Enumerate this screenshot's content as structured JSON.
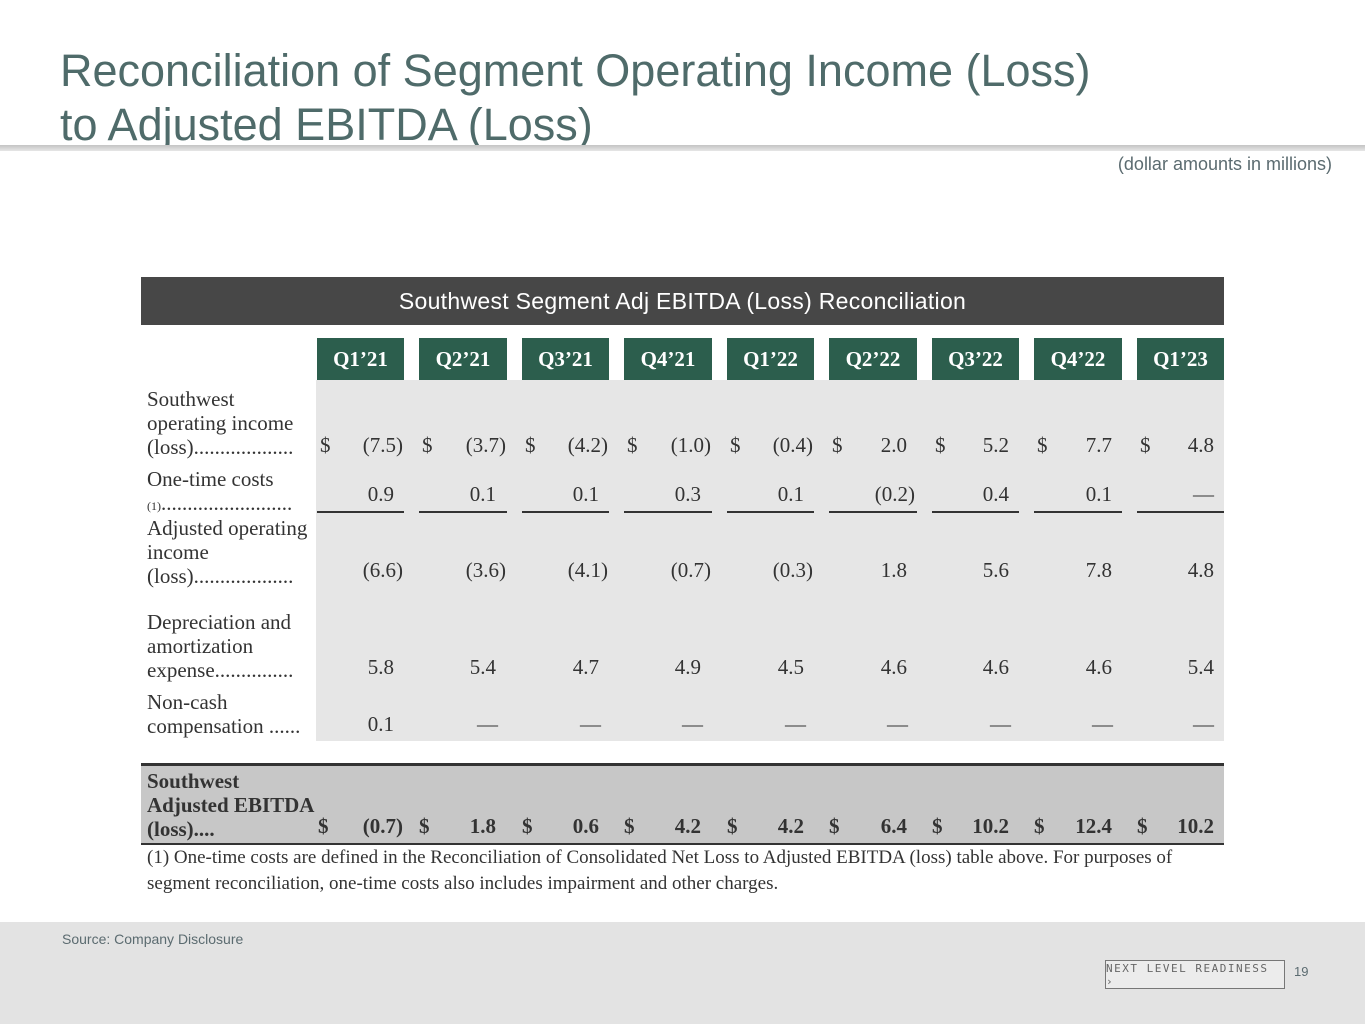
{
  "slide": {
    "title_line1": "Reconciliation of Segment Operating Income (Loss)",
    "title_line2": "to Adjusted EBITDA (Loss)",
    "units_note": "(dollar amounts in millions)",
    "page_number": "19"
  },
  "table": {
    "banner": "Southwest Segment Adj EBITDA (Loss) Reconciliation",
    "columns": [
      "Q1’21",
      "Q2’21",
      "Q3’21",
      "Q4’21",
      "Q1’22",
      "Q2’22",
      "Q3’22",
      "Q4’22",
      "Q1’23"
    ],
    "currency_symbol": "$",
    "rows": [
      {
        "label": "Southwest operating income (loss)...................",
        "values": [
          "(7.5)",
          "(3.7)",
          "(4.2)",
          "(1.0)",
          "(0.4)",
          "2.0",
          "5.2",
          "7.7",
          "4.8"
        ]
      },
      {
        "label": "One-time costs",
        "footnote_ref": "(1)",
        "label_tail": ".........................",
        "values": [
          "0.9",
          "0.1",
          "0.1",
          "0.3",
          "0.1",
          "(0.2)",
          "0.4",
          "0.1",
          "—"
        ]
      },
      {
        "label": "Adjusted operating income (loss)...................",
        "values": [
          "(6.6)",
          "(3.6)",
          "(4.1)",
          "(0.7)",
          "(0.3)",
          "1.8",
          "5.6",
          "7.8",
          "4.8"
        ]
      },
      {
        "label": "Depreciation and amortization expense...............",
        "values": [
          "5.8",
          "5.4",
          "4.7",
          "4.9",
          "4.5",
          "4.6",
          "4.6",
          "4.6",
          "5.4"
        ]
      },
      {
        "label": "Non-cash compensation ......",
        "values": [
          "0.1",
          "—",
          "—",
          "—",
          "—",
          "—",
          "—",
          "—",
          "—"
        ]
      }
    ],
    "total_row": {
      "label": "Southwest Adjusted EBITDA (loss)....",
      "values": [
        "(0.7)",
        "1.8",
        "0.6",
        "4.2",
        "4.2",
        "6.4",
        "10.2",
        "12.4",
        "10.2"
      ]
    },
    "footnote": "(1) One-time costs are defined in the Reconciliation of Consolidated Net Loss to Adjusted EBITDA (loss) table above. For purposes of segment reconciliation, one-time costs also includes impairment and other charges."
  },
  "footer": {
    "source": "Source: Company Disclosure",
    "brand": "NEXT LEVEL READINESS ›"
  }
}
